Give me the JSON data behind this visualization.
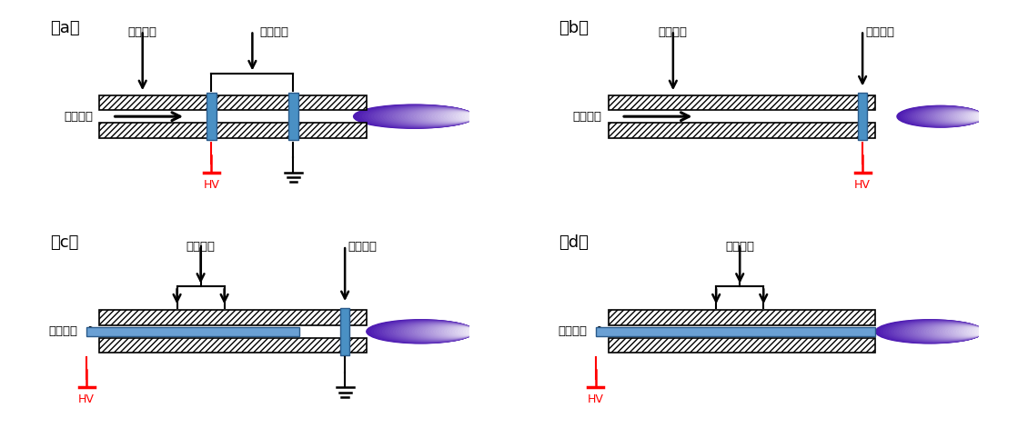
{
  "fig_width": 11.19,
  "fig_height": 4.93,
  "bg_color": "#ffffff",
  "label_jueyan": "绦缘介质",
  "label_huanxing": "环形电极",
  "label_gongzuo": "工作气体",
  "label_HV": "HV",
  "panels": [
    "（a）",
    "（b）",
    "（c）",
    "（d）"
  ],
  "tube_hatch": "/////",
  "electrode_color": "#4a90c4",
  "electrode_edge": "#2a5a8a",
  "inner_tube_color": "#6aa0d4",
  "plasma_colors": [
    "#ffffff",
    "#e8d0f0",
    "#c090d8",
    "#8040a0",
    "#500080"
  ],
  "arrow_lw": 1.8,
  "hv_color": "#ff0000",
  "ground_color": "#000000"
}
